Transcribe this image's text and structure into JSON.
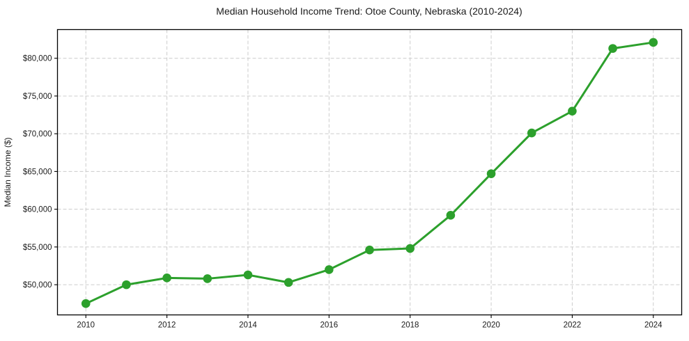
{
  "page": {
    "background": "#ffffff",
    "text_color": "#1a1a1a"
  },
  "chart_data": {
    "type": "line",
    "title": "Median Household Income Trend: Otoe County, Nebraska (2010-2024)",
    "xlabel": "",
    "ylabel": "Median Income ($)",
    "x": [
      2010,
      2011,
      2012,
      2013,
      2014,
      2015,
      2016,
      2017,
      2018,
      2019,
      2020,
      2021,
      2022,
      2023,
      2024
    ],
    "values": [
      47500,
      50000,
      50900,
      50800,
      51300,
      50300,
      52000,
      54600,
      54800,
      59200,
      64700,
      70100,
      73000,
      81300,
      82100
    ],
    "line_color": "#2ca02c",
    "marker": "circle",
    "marker_color": "#2ca02c",
    "xticks": [
      {
        "value": 2010,
        "label": "2010"
      },
      {
        "value": 2012,
        "label": "2012"
      },
      {
        "value": 2014,
        "label": "2014"
      },
      {
        "value": 2016,
        "label": "2016"
      },
      {
        "value": 2018,
        "label": "2018"
      },
      {
        "value": 2020,
        "label": "2020"
      },
      {
        "value": 2022,
        "label": "2022"
      },
      {
        "value": 2024,
        "label": "2024"
      }
    ],
    "yticks": [
      {
        "value": 50000,
        "label": "$50,000"
      },
      {
        "value": 55000,
        "label": "$55,000"
      },
      {
        "value": 60000,
        "label": "$60,000"
      },
      {
        "value": 65000,
        "label": "$65,000"
      },
      {
        "value": 70000,
        "label": "$70,000"
      },
      {
        "value": 75000,
        "label": "$75,000"
      },
      {
        "value": 80000,
        "label": "$80,000"
      }
    ],
    "xlim": [
      2009.3,
      2024.7
    ],
    "ylim": [
      46000,
      83800
    ],
    "grid": "dashed",
    "grid_color": "#cccccc",
    "axis_color": "#000000",
    "legend": "none"
  }
}
